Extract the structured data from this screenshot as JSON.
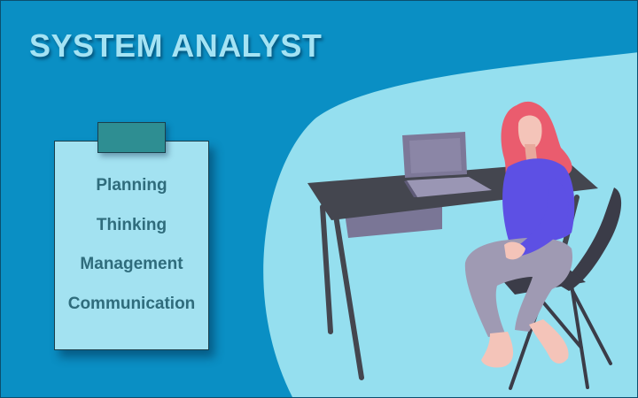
{
  "header": {
    "title": "SYSTEM ANALYST"
  },
  "clipboard": {
    "items": [
      {
        "label": "Planning"
      },
      {
        "label": "Thinking"
      },
      {
        "label": "Management"
      },
      {
        "label": "Communication"
      }
    ]
  },
  "colors": {
    "background": "#0a8fc4",
    "blob": "#95dfef",
    "title": "#a4e3f4",
    "clipboard": "#a3e2f1",
    "clip": "#2e8e92",
    "clipboard_text": "#2f6c7c",
    "desk": "#44464f",
    "drawer": "#7a7696",
    "laptop": "#8b86a6",
    "hair": "#ea5c6e",
    "skin": "#f4c4b9",
    "shirt": "#5d50e4",
    "pants": "#9f9ab3",
    "chair": "#3b3c48"
  },
  "icons": [
    "laptop-icon"
  ]
}
